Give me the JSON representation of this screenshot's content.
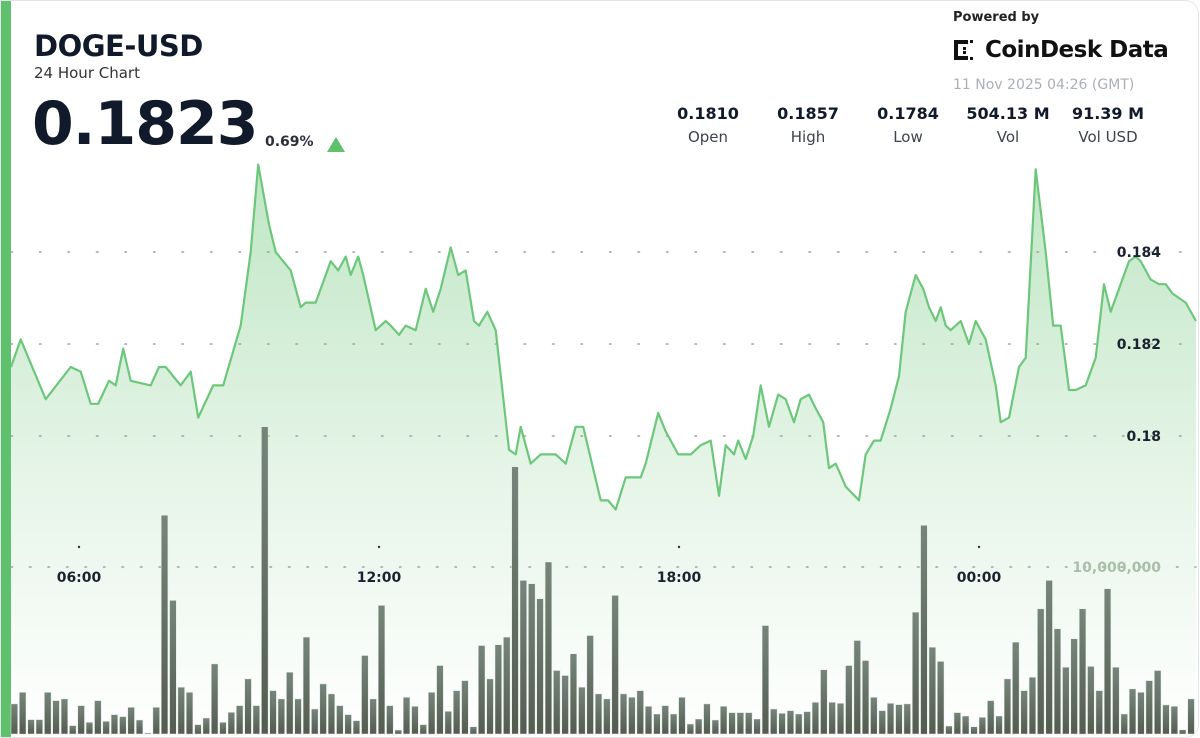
{
  "header": {
    "symbol": "DOGE-USD",
    "subtitle": "24 Hour Chart",
    "price": "0.1823",
    "change": "0.69%",
    "change_direction": "up",
    "powered_by": "Powered by",
    "brand": "CoinDesk Data",
    "timestamp": "11 Nov 2025 04:26 (GMT)"
  },
  "stats": [
    {
      "value": "0.1810",
      "label": "Open"
    },
    {
      "value": "0.1857",
      "label": "High"
    },
    {
      "value": "0.1784",
      "label": "Low"
    },
    {
      "value": "504.13 M",
      "label": "Vol"
    },
    {
      "value": "91.39 M",
      "label": "Vol USD"
    }
  ],
  "colors": {
    "accent": "#5fc06e",
    "line": "#6cc77b",
    "volume": "#5e6a5c",
    "text": "#111a2b"
  },
  "chart_data": {
    "type": "line",
    "grid": true,
    "x_ticks": [
      "06:00",
      "12:00",
      "18:00",
      "00:00"
    ],
    "y_ticks": [
      "0.184",
      "0.182",
      "0.18"
    ],
    "volume_tick": "10,000,000",
    "price_series": [
      [
        "04:38",
        0.1815
      ],
      [
        "04:50",
        0.1821
      ],
      [
        "05:20",
        0.1808
      ],
      [
        "05:50",
        0.1815
      ],
      [
        "06:02",
        0.1814
      ],
      [
        "06:14",
        0.1807
      ],
      [
        "06:23",
        0.1807
      ],
      [
        "06:36",
        0.1812
      ],
      [
        "06:44",
        0.1811
      ],
      [
        "06:53",
        0.1819
      ],
      [
        "07:02",
        0.1812
      ],
      [
        "07:26",
        0.1811
      ],
      [
        "07:36",
        0.1815
      ],
      [
        "07:44",
        0.1815
      ],
      [
        "08:02",
        0.1811
      ],
      [
        "08:14",
        0.1814
      ],
      [
        "08:23",
        0.1804
      ],
      [
        "08:41",
        0.1811
      ],
      [
        "08:53",
        0.1811
      ],
      [
        "09:14",
        0.1824
      ],
      [
        "09:26",
        0.184
      ],
      [
        "09:35",
        0.1859
      ],
      [
        "09:48",
        0.1846
      ],
      [
        "09:56",
        0.184
      ],
      [
        "10:14",
        0.1836
      ],
      [
        "10:26",
        0.1828
      ],
      [
        "10:32",
        0.1829
      ],
      [
        "10:44",
        0.1829
      ],
      [
        "11:02",
        0.1838
      ],
      [
        "11:11",
        0.1836
      ],
      [
        "11:20",
        0.1839
      ],
      [
        "11:26",
        0.1835
      ],
      [
        "11:35",
        0.1839
      ],
      [
        "11:41",
        0.1835
      ],
      [
        "11:56",
        0.1823
      ],
      [
        "12:08",
        0.1825
      ],
      [
        "12:14",
        0.1824
      ],
      [
        "12:24",
        0.1822
      ],
      [
        "12:32",
        0.1824
      ],
      [
        "12:44",
        0.1823
      ],
      [
        "12:56",
        0.1832
      ],
      [
        "13:05",
        0.1827
      ],
      [
        "13:14",
        0.1832
      ],
      [
        "13:26",
        0.1841
      ],
      [
        "13:35",
        0.1835
      ],
      [
        "13:44",
        0.1836
      ],
      [
        "13:54",
        0.1825
      ],
      [
        "14:00",
        0.1824
      ],
      [
        "14:10",
        0.1827
      ],
      [
        "14:20",
        0.1823
      ],
      [
        "14:36",
        0.1797
      ],
      [
        "14:44",
        0.1796
      ],
      [
        "14:50",
        0.1802
      ],
      [
        "15:02",
        0.1794
      ],
      [
        "15:14",
        0.1796
      ],
      [
        "15:32",
        0.1796
      ],
      [
        "15:44",
        0.1794
      ],
      [
        "15:56",
        0.1802
      ],
      [
        "16:05",
        0.1802
      ],
      [
        "16:26",
        0.1786
      ],
      [
        "16:35",
        0.1786
      ],
      [
        "16:44",
        0.1784
      ],
      [
        "16:56",
        0.1791
      ],
      [
        "17:14",
        0.1791
      ],
      [
        "17:20",
        0.1794
      ],
      [
        "17:35",
        0.1805
      ],
      [
        "17:44",
        0.1801
      ],
      [
        "17:59",
        0.1796
      ],
      [
        "18:14",
        0.1796
      ],
      [
        "18:26",
        0.1798
      ],
      [
        "18:38",
        0.1799
      ],
      [
        "18:48",
        0.1787
      ],
      [
        "18:56",
        0.1798
      ],
      [
        "19:06",
        0.1796
      ],
      [
        "19:11",
        0.1799
      ],
      [
        "19:20",
        0.1795
      ],
      [
        "19:29",
        0.18
      ],
      [
        "19:38",
        0.1811
      ],
      [
        "19:48",
        0.1802
      ],
      [
        "19:59",
        0.1809
      ],
      [
        "20:08",
        0.1808
      ],
      [
        "20:18",
        0.1803
      ],
      [
        "20:26",
        0.1808
      ],
      [
        "20:36",
        0.1809
      ],
      [
        "20:44",
        0.1806
      ],
      [
        "20:53",
        0.1803
      ],
      [
        "21:00",
        0.1793
      ],
      [
        "21:08",
        0.1794
      ],
      [
        "21:20",
        0.1789
      ],
      [
        "21:36",
        0.1786
      ],
      [
        "21:44",
        0.1796
      ],
      [
        "21:54",
        0.1799
      ],
      [
        "22:02",
        0.1799
      ],
      [
        "22:14",
        0.1806
      ],
      [
        "22:24",
        0.1813
      ],
      [
        "22:32",
        0.1827
      ],
      [
        "22:44",
        0.1835
      ],
      [
        "22:53",
        0.1832
      ],
      [
        "23:00",
        0.1828
      ],
      [
        "23:08",
        0.1825
      ],
      [
        "23:14",
        0.1828
      ],
      [
        "23:20",
        0.1824
      ],
      [
        "23:26",
        0.1823
      ],
      [
        "23:38",
        0.1825
      ],
      [
        "23:48",
        0.182
      ],
      [
        "23:56",
        0.1825
      ],
      [
        "00:08",
        0.1821
      ],
      [
        "00:20",
        0.1811
      ],
      [
        "00:26",
        0.1803
      ],
      [
        "00:36",
        0.1804
      ],
      [
        "00:48",
        0.1815
      ],
      [
        "00:56",
        0.1817
      ],
      [
        "01:08",
        0.1858
      ],
      [
        "01:20",
        0.184
      ],
      [
        "01:29",
        0.1824
      ],
      [
        "01:38",
        0.1824
      ],
      [
        "01:48",
        0.181
      ],
      [
        "01:56",
        0.181
      ],
      [
        "02:08",
        0.1811
      ],
      [
        "02:20",
        0.1817
      ],
      [
        "02:30",
        0.1833
      ],
      [
        "02:38",
        0.1827
      ],
      [
        "02:48",
        0.1832
      ],
      [
        "03:00",
        0.1838
      ],
      [
        "03:08",
        0.1839
      ],
      [
        "03:14",
        0.1838
      ],
      [
        "03:26",
        0.1834
      ],
      [
        "03:36",
        0.1833
      ],
      [
        "03:44",
        0.1833
      ],
      [
        "03:52",
        0.1831
      ],
      [
        "04:08",
        0.1829
      ],
      [
        "04:20",
        0.1825
      ]
    ],
    "volumes": [
      1800000,
      2500000,
      860000,
      860000,
      2500000,
      2000000,
      2100000,
      500000,
      1700000,
      700000,
      2000000,
      760000,
      1160000,
      1040000,
      1600000,
      840000,
      60000,
      1600000,
      13100000,
      8000000,
      2800000,
      2500000,
      560000,
      960000,
      4200000,
      700000,
      1300000,
      1700000,
      3300000,
      1700000,
      18400000,
      2600000,
      2100000,
      3700000,
      2100000,
      5800000,
      1500000,
      3000000,
      2400000,
      1700000,
      1160000,
      800000,
      4700000,
      2100000,
      7700000,
      1700000,
      240000,
      2200000,
      1660000,
      560000,
      2500000,
      4100000,
      1360000,
      2600000,
      3200000,
      440000,
      5300000,
      3300000,
      5350000,
      5800000,
      16000000,
      9200000,
      9000000,
      8100000,
      10300000,
      3800000,
      3500000,
      4800000,
      2800000,
      5900000,
      2400000,
      2100000,
      8300000,
      2400000,
      2200000,
      2600000,
      1660000,
      1200000,
      1700000,
      1200000,
      2200000,
      600000,
      900000,
      1800000,
      840000,
      1660000,
      1280000,
      1280000,
      1280000,
      900000,
      6500000,
      1500000,
      1240000,
      1400000,
      1200000,
      1340000,
      1900000,
      3850000,
      1900000,
      1840000,
      4100000,
      5600000,
      4400000,
      2200000,
      1400000,
      1840000,
      1760000,
      1800000,
      7300000,
      12500000,
      5200000,
      4350000,
      480000,
      1280000,
      1080000,
      440000,
      1000000,
      2000000,
      1080000,
      3300000,
      5500000,
      2600000,
      3400000,
      7500000,
      9200000,
      6300000,
      4000000,
      5700000,
      7500000,
      4050000,
      2600000,
      8700000,
      4000000,
      1200000,
      2700000,
      2500000,
      3200000,
      3800000,
      1740000,
      1660000,
      260000,
      2100000
    ]
  }
}
